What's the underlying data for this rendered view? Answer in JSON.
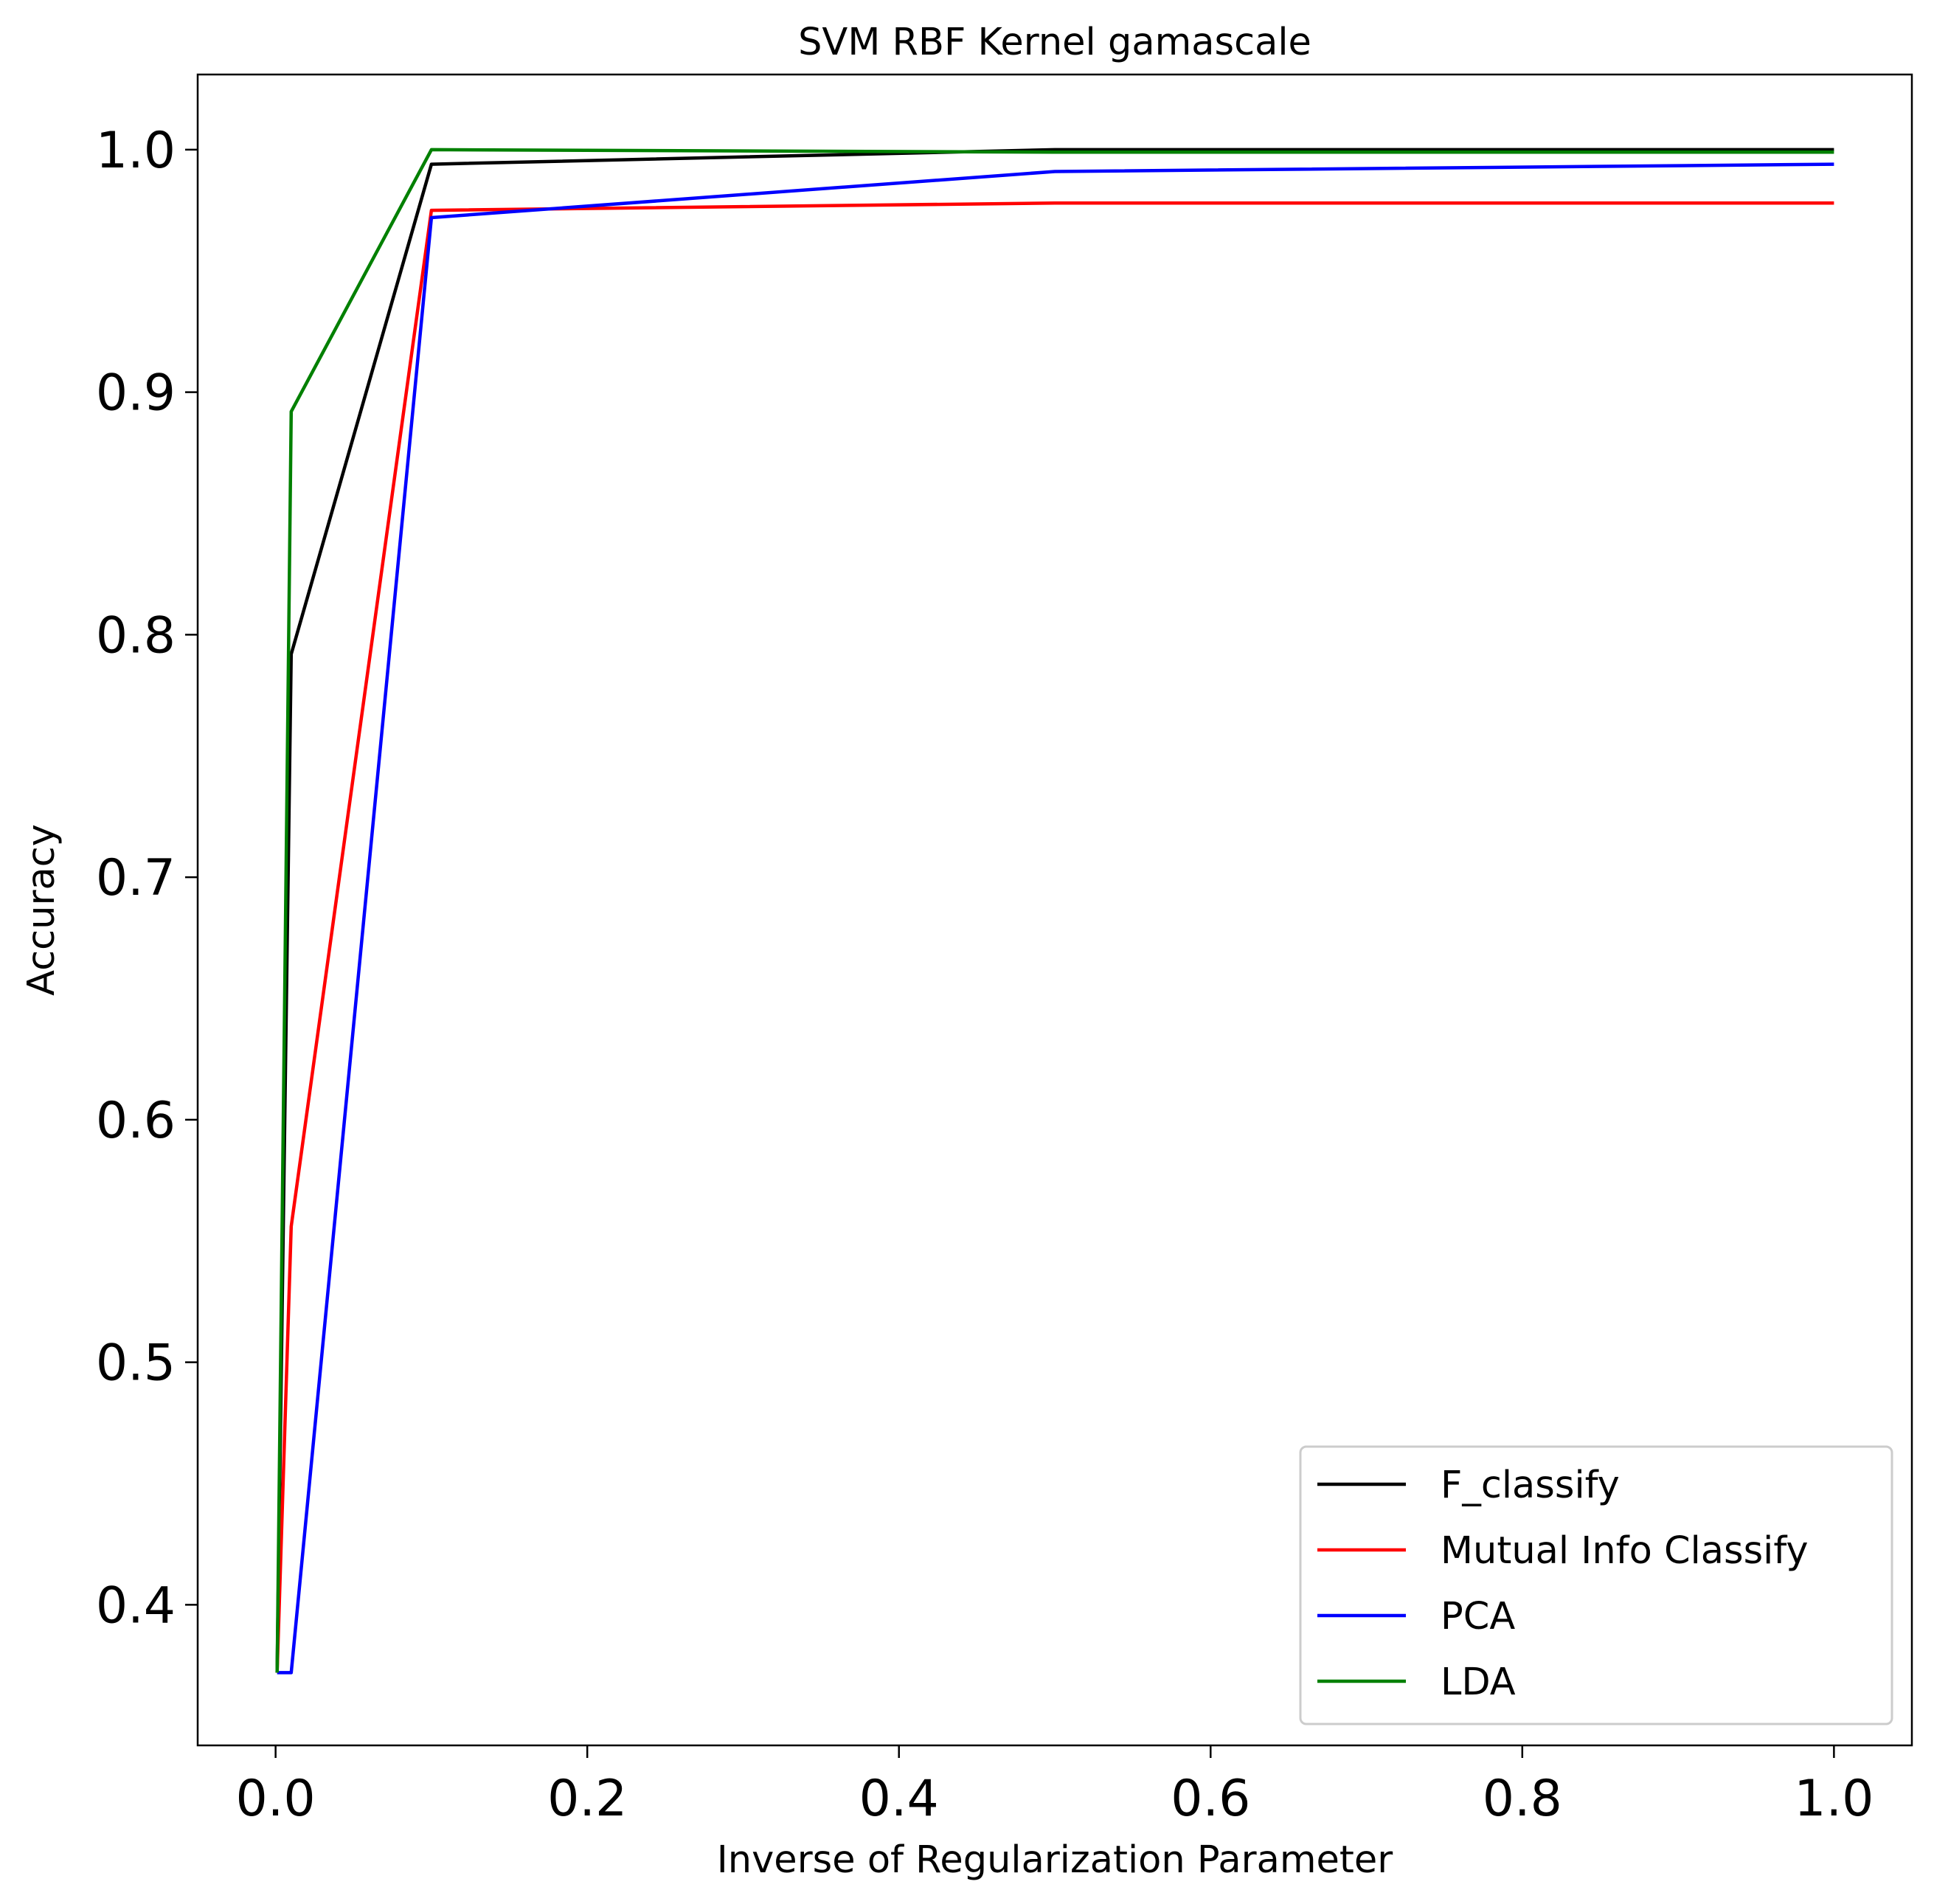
{
  "chart_data": {
    "type": "line",
    "title": "SVM RBF Kernel gamascale",
    "xlabel": "Inverse of Regularization Parameter",
    "ylabel": "Accuracy",
    "xlim": [
      -0.05,
      1.05
    ],
    "ylim": [
      0.342,
      1.031
    ],
    "xticks": [
      0.0,
      0.2,
      0.4,
      0.6,
      0.8,
      1.0
    ],
    "xtick_labels": [
      "0.0",
      "0.2",
      "0.4",
      "0.6",
      "0.8",
      "1.0"
    ],
    "yticks": [
      0.4,
      0.5,
      0.6,
      0.7,
      0.8,
      0.9,
      1.0
    ],
    "ytick_labels": [
      "0.4",
      "0.5",
      "0.6",
      "0.7",
      "0.8",
      "0.9",
      "1.0"
    ],
    "grid": false,
    "legend_position": "lower-right",
    "x": [
      0.001,
      0.01,
      0.1,
      0.5,
      1.0
    ],
    "series": [
      {
        "name": "F_classify",
        "color": "#000000",
        "values": [
          0.372,
          0.792,
          0.994,
          1.0,
          1.0
        ]
      },
      {
        "name": "Mutual Info Classify",
        "color": "#ff0000",
        "values": [
          0.372,
          0.556,
          0.975,
          0.978,
          0.978
        ]
      },
      {
        "name": "PCA",
        "color": "#0000ff",
        "values": [
          0.372,
          0.372,
          0.972,
          0.991,
          0.994
        ]
      },
      {
        "name": "LDA",
        "color": "#008000",
        "values": [
          0.372,
          0.892,
          1.0,
          0.999,
          0.999
        ]
      }
    ]
  }
}
